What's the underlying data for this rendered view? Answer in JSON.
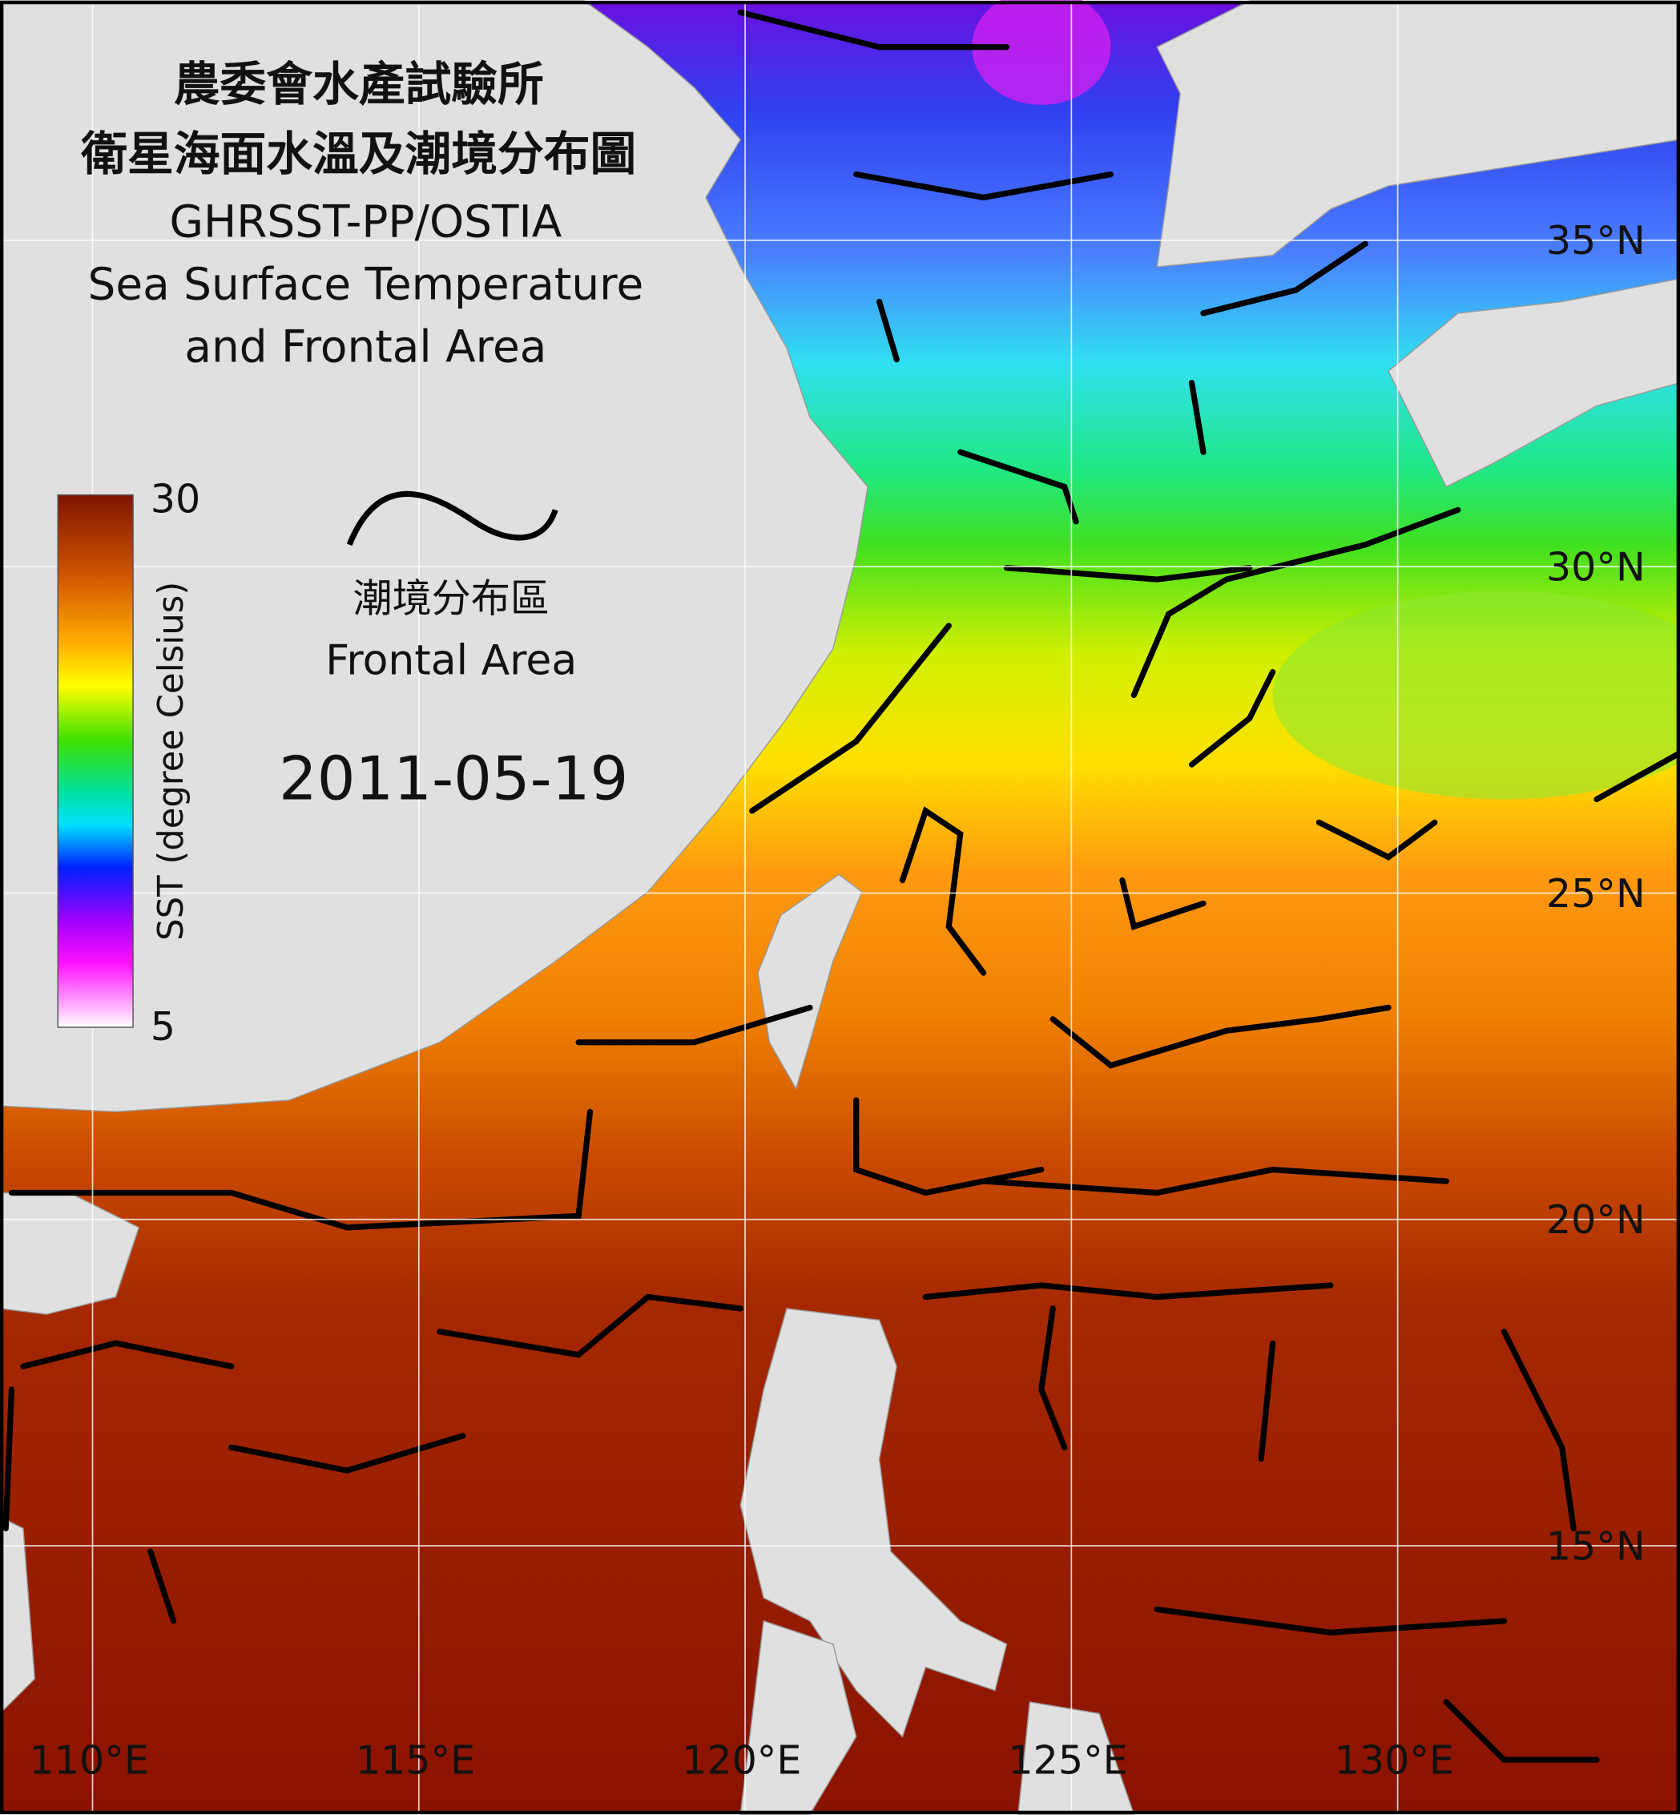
{
  "title": {
    "line1": "農委會水產試驗所",
    "line2": "衛星海面水溫及潮境分布圖",
    "line3": "GHRSST-PP/OSTIA",
    "line4": "Sea Surface Temperature",
    "line5": "and Frontal Area"
  },
  "colorbar": {
    "label": "SST (degree Celsius)",
    "max": 30,
    "min": 5
  },
  "legend": {
    "label_zh": "潮境分布區",
    "label_en": "Frontal Area"
  },
  "date": "2011-05-19",
  "latitude_labels": [
    "35°N",
    "30°N",
    "25°N",
    "20°N",
    "15°N"
  ],
  "longitude_labels": [
    "110°E",
    "115°E",
    "120°E",
    "125°E",
    "130°E"
  ]
}
